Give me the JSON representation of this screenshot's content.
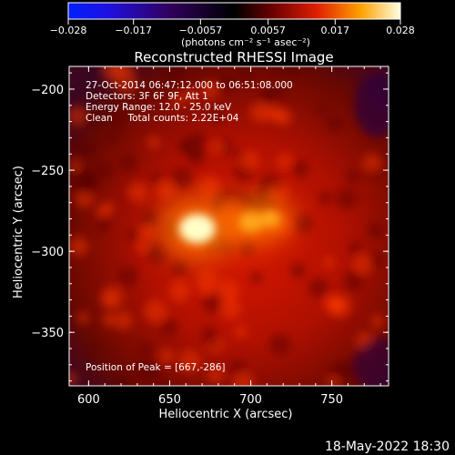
{
  "chart_data": {
    "type": "heatmap",
    "title": "Reconstructed RHESSI Image",
    "xlabel": "Heliocentric X (arcsec)",
    "ylabel": "Heliocentric Y (arcsec)",
    "xlim": [
      588,
      785
    ],
    "ylim": [
      -383,
      -186
    ],
    "x_ticks": [
      600,
      650,
      700,
      750
    ],
    "y_ticks": [
      -200,
      -250,
      -300,
      -350
    ],
    "x_tick_labels": [
      "600",
      "650",
      "700",
      "750"
    ],
    "y_tick_labels": [
      "−200",
      "−250",
      "−300",
      "−350"
    ],
    "colorbar": {
      "range": [
        -0.028,
        0.028
      ],
      "ticks": [
        -0.028,
        -0.017,
        -0.0057,
        0.0057,
        0.017,
        0.028
      ],
      "tick_labels": [
        "−0.028",
        "−0.017",
        "−0.0057",
        "0.0057",
        "0.017",
        "0.028"
      ],
      "units": "(photons cm⁻² s⁻¹ asec⁻²)"
    },
    "sources": [
      {
        "x": 667,
        "y": -286,
        "amplitude": 1.0
      },
      {
        "x": 700,
        "y": -282,
        "amplitude": 0.62
      },
      {
        "x": 712,
        "y": -280,
        "amplitude": 0.5
      }
    ],
    "peak": [
      667,
      -286
    ],
    "annotations": {
      "time_range": "27-Oct-2014 06:47:12.000 to 06:51:08.000",
      "detectors": "Detectors: 3F 6F 9F, Att 1",
      "energy": "Energy Range: 12.0 - 25.0 keV",
      "clean": "Clean     Total counts: 2.22E+04",
      "peak_label": "Position of Peak = [667,-286]"
    }
  },
  "footer_timestamp": "18-May-2022 18:30"
}
